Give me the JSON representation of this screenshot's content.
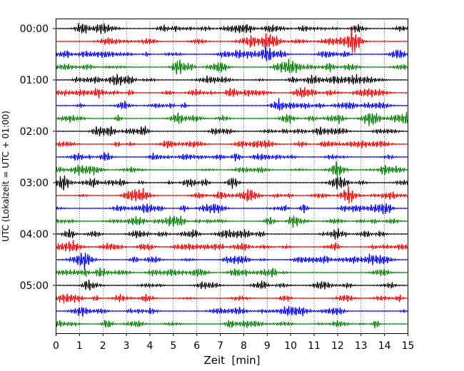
{
  "chart_data": {
    "type": "line",
    "title": "",
    "xlabel": "Zeit  [min]",
    "ylabel": "UTC (Lokalzeit = UTC + 01:00)",
    "xlim": [
      0,
      15
    ],
    "xticks": [
      "0",
      "1",
      "2",
      "3",
      "4",
      "5",
      "6",
      "7",
      "8",
      "9",
      "10",
      "11",
      "12",
      "13",
      "14",
      "15"
    ],
    "yticks": [
      "00:00",
      "01:00",
      "02:00",
      "03:00",
      "04:00",
      "05:00"
    ],
    "grid": "vertical dotted lines at each minute",
    "trace_interval_minutes": 15,
    "trace_starts": [
      "00:00",
      "00:15",
      "00:30",
      "00:45",
      "01:00",
      "01:15",
      "01:30",
      "01:45",
      "02:00",
      "02:15",
      "02:30",
      "02:45",
      "03:00",
      "03:15",
      "03:30",
      "03:45",
      "04:00",
      "04:15",
      "04:30",
      "04:45",
      "05:00",
      "05:15",
      "05:30",
      "05:45"
    ],
    "trace_colors": [
      "#000000",
      "#ff0000",
      "#0000ff",
      "#007f00"
    ],
    "series_note": "seismogram waveform traces (noise-like ground motion), one per 15-minute segment"
  }
}
